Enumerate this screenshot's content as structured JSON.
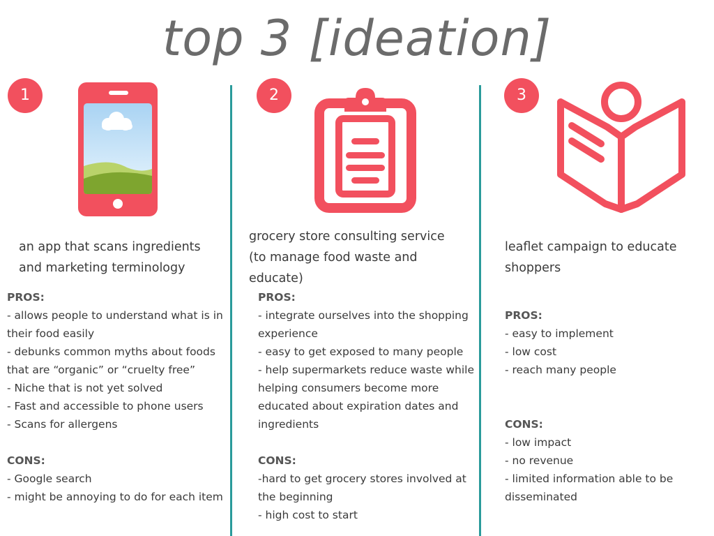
{
  "title": "top 3 [ideation]",
  "colors": {
    "accent": "#f2505e",
    "divider": "#2a9b9b",
    "title": "#6b6b6b"
  },
  "ideas": [
    {
      "number": "1",
      "icon": "smartphone-icon",
      "description": [
        "an app that scans ingredients",
        "and marketing terminology"
      ],
      "pros_label": "PROS:",
      "pros": [
        "- allows people to understand what is in their food easily",
        "- debunks common myths about foods that are “organic” or “cruelty free”",
        "- Niche that is not yet solved",
        "- Fast and accessible to phone users",
        "- Scans for allergens"
      ],
      "cons_label": "CONS:",
      "cons": [
        "- Google search",
        "- might be annoying to do for each item"
      ]
    },
    {
      "number": "2",
      "icon": "clipboard-icon",
      "description": [
        "grocery store consulting service",
        "(to manage food waste and",
        "educate)"
      ],
      "pros_label": "PROS:",
      "pros": [
        "- integrate ourselves into the shopping experience",
        "- easy to get exposed to many people",
        "- help supermarkets reduce waste while helping consumers become more educated about expiration dates and ingredients"
      ],
      "cons_label": "CONS:",
      "cons": [
        "-hard to get grocery stores involved at the beginning",
        "- high cost to start"
      ]
    },
    {
      "number": "3",
      "icon": "reading-book-icon",
      "description": [
        "leaflet campaign to educate",
        "shoppers"
      ],
      "pros_label": "PROS:",
      "pros": [
        "- easy to implement",
        "- low cost",
        "- reach many people"
      ],
      "cons_label": "CONS:",
      "cons": [
        "- low impact",
        "- no revenue",
        "- limited information able to be disseminated"
      ]
    }
  ]
}
